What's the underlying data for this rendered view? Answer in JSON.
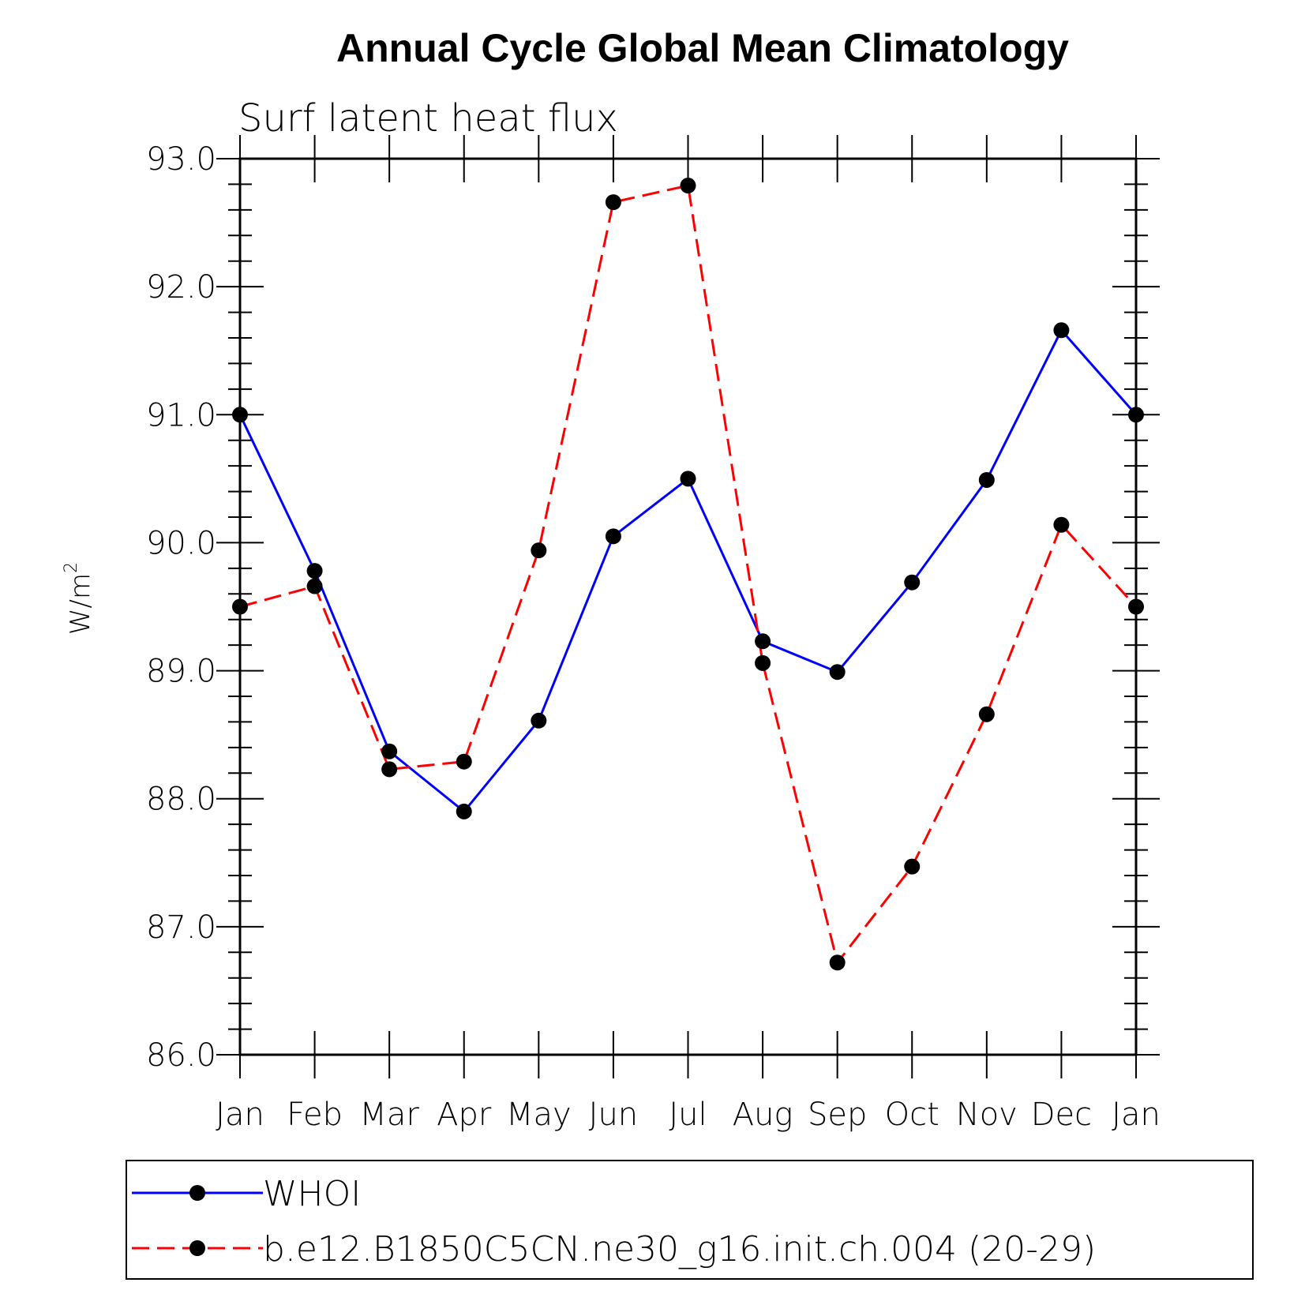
{
  "chart_data": {
    "type": "line",
    "title": "Annual Cycle Global Mean Climatology",
    "subtitle": "Surf latent heat flux",
    "xlabel": "",
    "ylabel": "W/m",
    "ylabel_superscript": "2",
    "categories": [
      "Jan",
      "Feb",
      "Mar",
      "Apr",
      "May",
      "Jun",
      "Jul",
      "Aug",
      "Sep",
      "Oct",
      "Nov",
      "Dec",
      "Jan"
    ],
    "ylim": [
      86.0,
      93.0
    ],
    "yticks": [
      86.0,
      87.0,
      88.0,
      89.0,
      90.0,
      91.0,
      92.0,
      93.0
    ],
    "ytick_labels": [
      "86.0",
      "87.0",
      "88.0",
      "89.0",
      "90.0",
      "91.0",
      "92.0",
      "93.0"
    ],
    "grid": false,
    "legend_position": "bottom",
    "series": [
      {
        "name": "WHOI",
        "color": "#0000ff",
        "line_style": "solid",
        "marker": "filled-circle",
        "marker_color": "#000000",
        "values": [
          91.0,
          89.78,
          88.37,
          87.9,
          88.61,
          90.05,
          90.5,
          89.23,
          88.99,
          89.69,
          90.49,
          91.66,
          91.0
        ]
      },
      {
        "name": "b.e12.B1850C5CN.ne30_g16.init.ch.004 (20-29)",
        "color": "#ff0000",
        "line_style": "dashed",
        "marker": "filled-circle",
        "marker_color": "#000000",
        "values": [
          89.5,
          89.66,
          88.23,
          88.29,
          89.94,
          92.66,
          92.79,
          89.06,
          86.72,
          87.47,
          88.66,
          90.14,
          89.5
        ]
      }
    ]
  }
}
